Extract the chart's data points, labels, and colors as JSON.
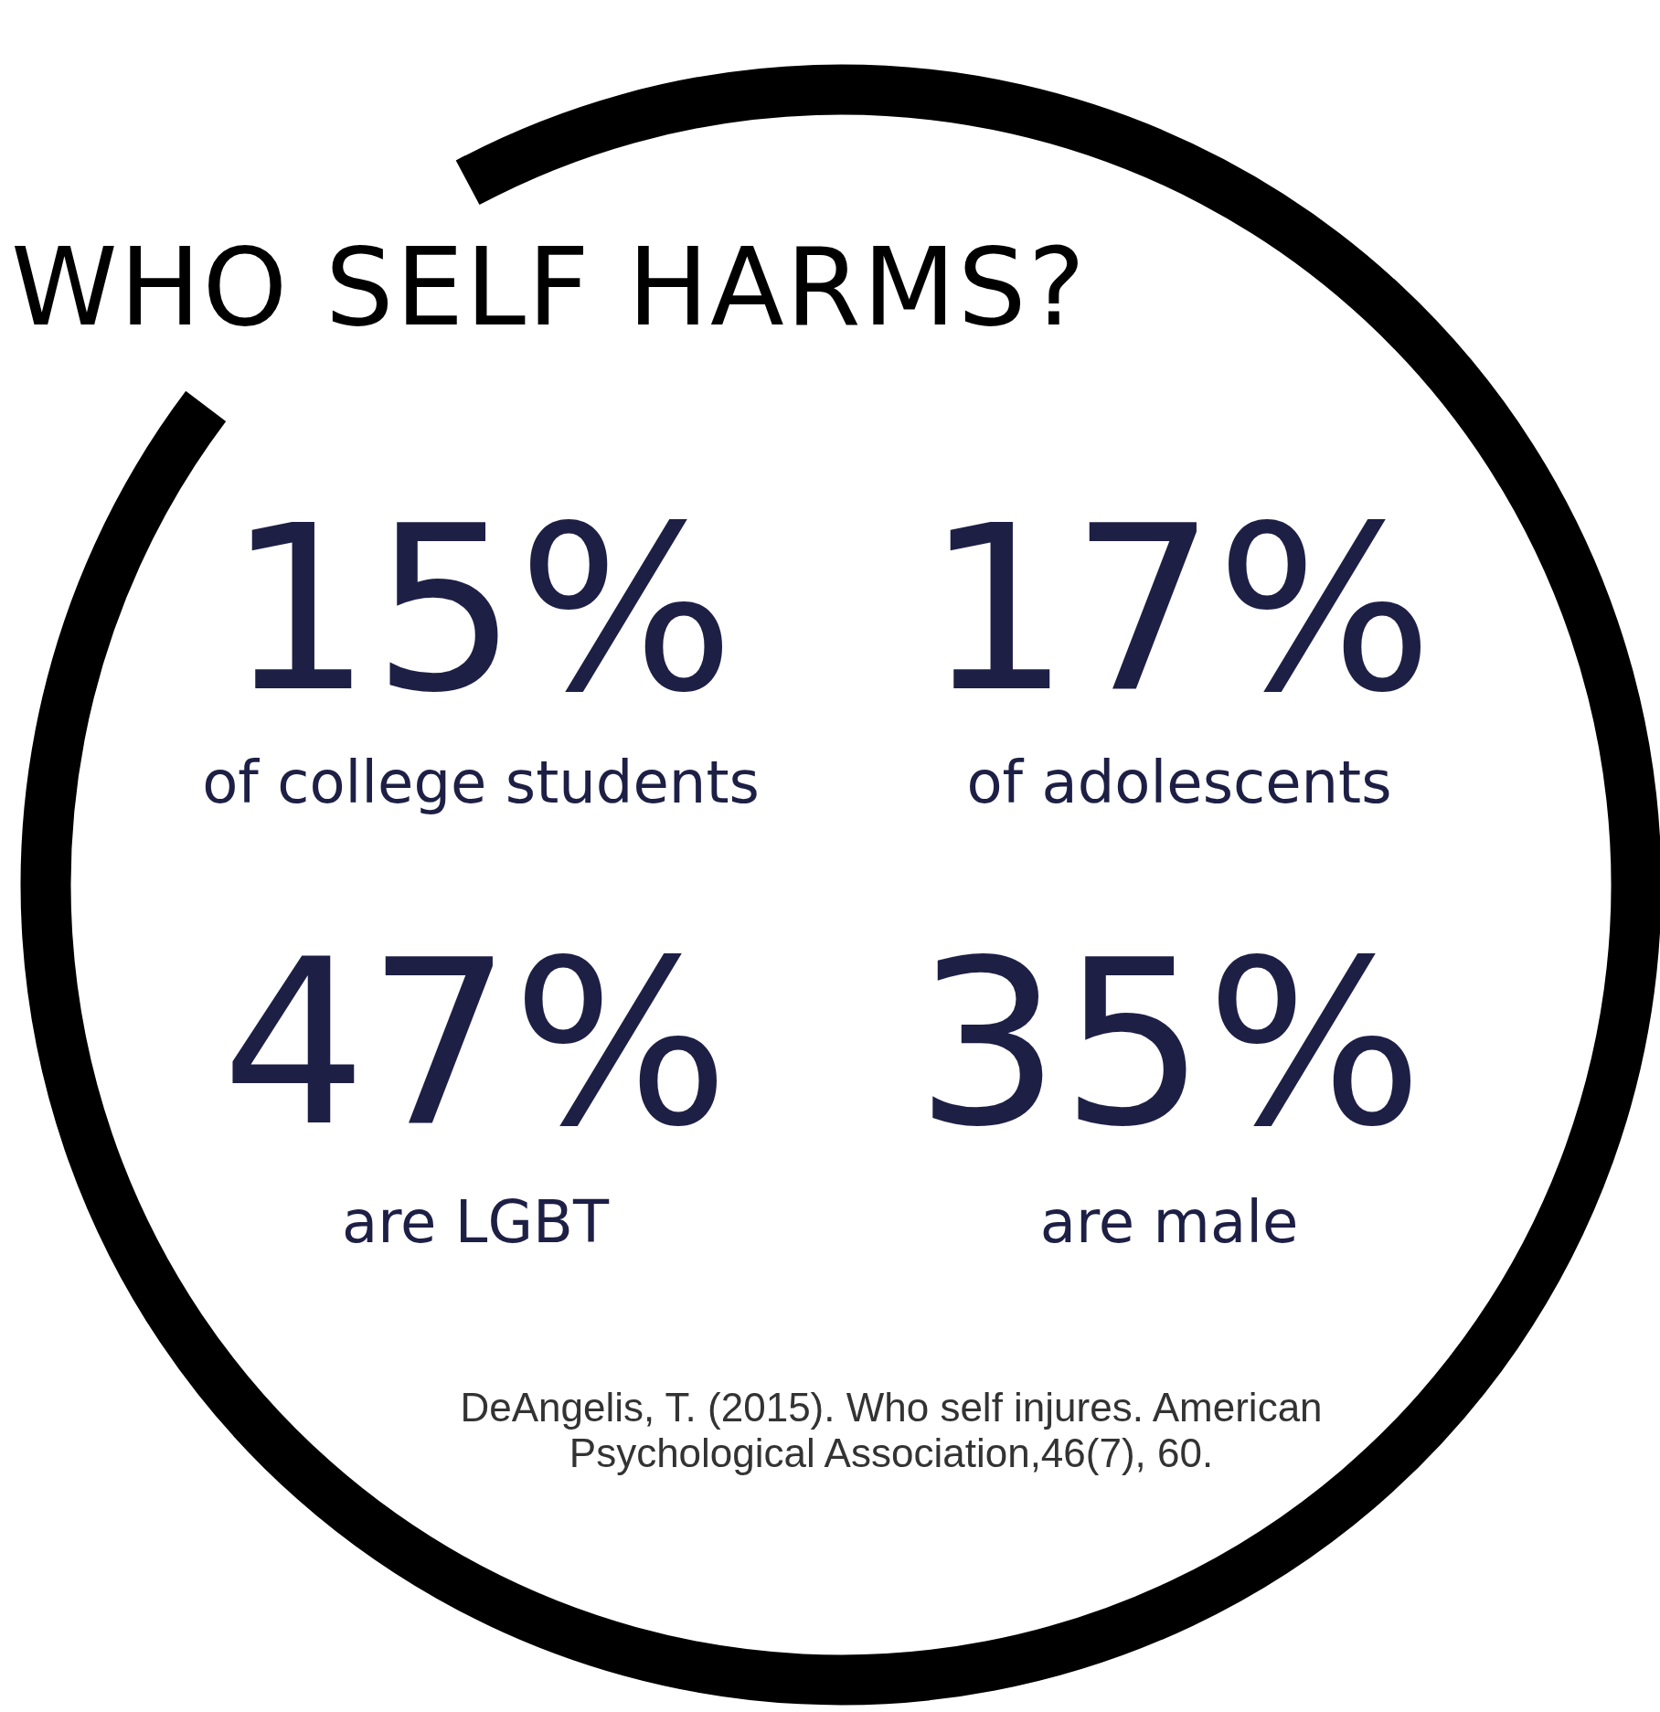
{
  "chart_data": {
    "type": "other",
    "title": "WHO SELF HARMS?",
    "categories": [
      "of college students",
      "of adolescents",
      "are LGBT",
      "are male"
    ],
    "values": [
      15,
      17,
      47,
      35
    ],
    "value_labels": [
      "15%",
      "17%",
      "47%",
      "35%"
    ],
    "color": "#1e1f45",
    "annotations": [
      "DeAngelis, T. (2015). Who self injures. American Psychological Association,46(7), 60."
    ]
  }
}
